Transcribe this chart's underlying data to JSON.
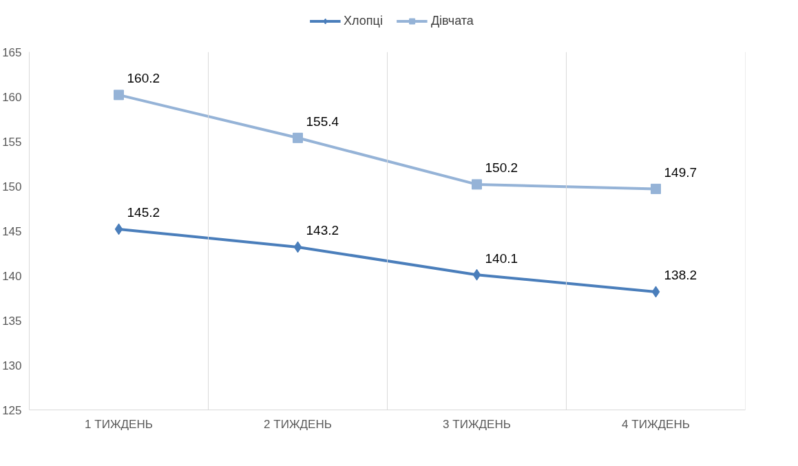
{
  "chart_data": {
    "type": "line",
    "categories": [
      "1 ТИЖДЕНЬ",
      "2 ТИЖДЕНЬ",
      "3 ТИЖДЕНЬ",
      "4 ТИЖДЕНЬ"
    ],
    "series": [
      {
        "name": "Хлопці",
        "color": "#4a7ebb",
        "marker": "diamond",
        "values": [
          145.2,
          143.2,
          140.1,
          138.2
        ]
      },
      {
        "name": "Дівчата",
        "color": "#95b3d7",
        "marker": "square",
        "values": [
          160.2,
          155.4,
          150.2,
          149.7
        ]
      }
    ],
    "ylim": [
      125,
      165
    ],
    "yticks": [
      125,
      130,
      135,
      140,
      145,
      150,
      155,
      160,
      165
    ],
    "grid": "x",
    "legend": "top",
    "data_labels": true,
    "line_style": "solid"
  }
}
